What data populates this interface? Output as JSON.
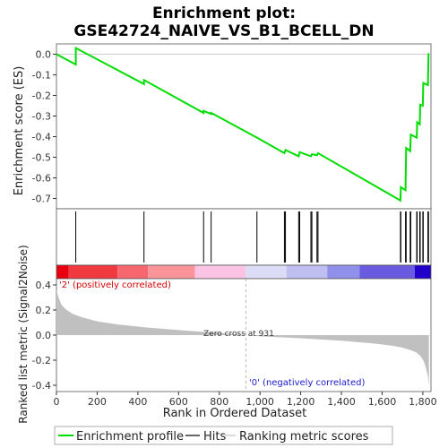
{
  "title_line1": "Enrichment plot:",
  "title_line2": "GSE42724_NAIVE_VS_B1_BCELL_DN",
  "colors": {
    "es_line": "#00dd00",
    "hits": "#000000",
    "metric_fill": "#c0c0c0",
    "heat_pos": "#e8000f",
    "heat_neg": "#2200cc",
    "pos_label": "#d40000",
    "neg_label": "#1a1acc"
  },
  "chart_data": {
    "type": "line",
    "xlabel": "Rank in Ordered Dataset",
    "x_ticks": [
      "0",
      "200",
      "400",
      "600",
      "800",
      "1,000",
      "1,200",
      "1,400",
      "1,600",
      "1,800"
    ],
    "x_tick_values": [
      0,
      200,
      400,
      600,
      800,
      1000,
      1200,
      1400,
      1600,
      1800
    ],
    "xlim": [
      0,
      1840
    ],
    "es_panel": {
      "ylabel": "Enrichment score (ES)",
      "ylim": [
        -0.75,
        0.05
      ],
      "y_ticks": [
        "0.0",
        "-0.1",
        "-0.2",
        "-0.3",
        "-0.4",
        "-0.5",
        "-0.6",
        "-0.7"
      ],
      "y_tick_values": [
        0.0,
        -0.1,
        -0.2,
        -0.3,
        -0.4,
        -0.5,
        -0.6,
        -0.7
      ],
      "x": [
        0,
        95,
        95,
        430,
        430,
        723,
        723,
        760,
        760,
        985,
        1120,
        1125,
        1190,
        1195,
        1250,
        1255,
        1280,
        1285,
        1690,
        1692,
        1715,
        1718,
        1738,
        1741,
        1770,
        1772,
        1785,
        1787,
        1800,
        1802,
        1825,
        1828
      ],
      "y": [
        0.0,
        -0.05,
        0.03,
        -0.145,
        -0.125,
        -0.285,
        -0.275,
        -0.29,
        -0.285,
        -0.405,
        -0.48,
        -0.465,
        -0.495,
        -0.475,
        -0.495,
        -0.485,
        -0.49,
        -0.48,
        -0.71,
        -0.645,
        -0.66,
        -0.455,
        -0.47,
        -0.39,
        -0.405,
        -0.33,
        -0.34,
        -0.245,
        -0.25,
        -0.14,
        -0.15,
        0.005
      ]
    },
    "hits": [
      95,
      430,
      723,
      760,
      985,
      1120,
      1125,
      1190,
      1195,
      1250,
      1255,
      1280,
      1285,
      1690,
      1692,
      1715,
      1718,
      1738,
      1741,
      1770,
      1772,
      1785,
      1787,
      1800,
      1802,
      1825,
      1828
    ],
    "metric_panel": {
      "ylabel": "Ranked list metric (Signal2Noise)",
      "ylim": [
        -0.45,
        0.45
      ],
      "y_ticks": [
        "0.4",
        "0.2",
        "0.0",
        "-0.2",
        "-0.4"
      ],
      "y_tick_values": [
        0.4,
        0.2,
        0.0,
        -0.2,
        -0.4
      ],
      "rank": [
        0,
        10,
        25,
        50,
        80,
        120,
        200,
        300,
        450,
        600,
        750,
        900,
        931,
        1000,
        1200,
        1400,
        1550,
        1650,
        1700,
        1740,
        1770,
        1790,
        1805,
        1815,
        1825,
        1830
      ],
      "metric": [
        0.36,
        0.3,
        0.24,
        0.2,
        0.17,
        0.145,
        0.11,
        0.085,
        0.06,
        0.04,
        0.022,
        0.006,
        0.0,
        -0.01,
        -0.025,
        -0.045,
        -0.065,
        -0.085,
        -0.1,
        -0.12,
        -0.14,
        -0.17,
        -0.21,
        -0.26,
        -0.33,
        -0.41
      ],
      "zero_cross_rank": 931,
      "zero_cross_label": "Zero cross at 931",
      "pos_label": "'2' (positively correlated)",
      "neg_label": "'0' (negatively correlated)"
    },
    "legend": [
      "Enrichment profile",
      "Hits",
      "Ranking metric scores"
    ]
  }
}
